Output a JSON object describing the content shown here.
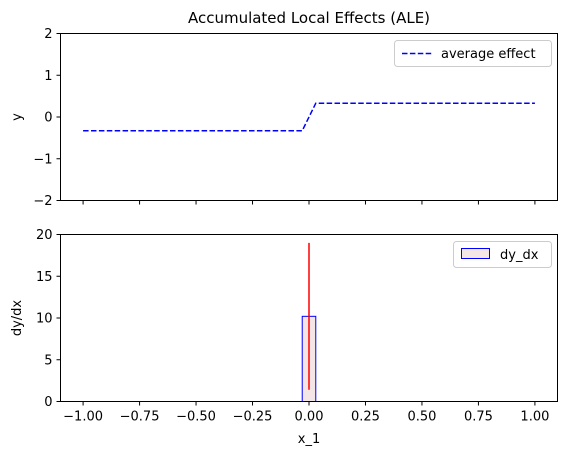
{
  "chart_data": [
    {
      "type": "line",
      "title": "Accumulated Local Effects (ALE)",
      "xlabel": "",
      "ylabel": "y",
      "xlim": [
        -1.1,
        1.1
      ],
      "ylim": [
        -2,
        2
      ],
      "xticks": [
        -1.0,
        -0.75,
        -0.5,
        -0.25,
        0.0,
        0.25,
        0.5,
        0.75,
        1.0
      ],
      "xticks_labeled": false,
      "yticks": [
        -2,
        -1,
        0,
        1,
        2
      ],
      "ytick_labels": [
        "−2",
        "−1",
        "0",
        "1",
        "2"
      ],
      "grid": false,
      "legend_position": "top-right",
      "series": [
        {
          "name": "average effect",
          "style": "dashed",
          "color": "#0000ff",
          "x": [
            -1.0,
            -0.9,
            -0.8,
            -0.7,
            -0.6,
            -0.5,
            -0.4,
            -0.3,
            -0.2,
            -0.1,
            -0.03,
            0.03,
            0.1,
            0.2,
            0.3,
            0.4,
            0.5,
            0.6,
            0.7,
            0.8,
            0.9,
            1.0
          ],
          "y": [
            -0.33,
            -0.33,
            -0.33,
            -0.33,
            -0.33,
            -0.33,
            -0.33,
            -0.33,
            -0.33,
            -0.33,
            -0.33,
            0.33,
            0.33,
            0.33,
            0.33,
            0.33,
            0.33,
            0.33,
            0.33,
            0.33,
            0.33,
            0.33
          ]
        }
      ]
    },
    {
      "type": "bar",
      "title": "",
      "xlabel": "x_1",
      "ylabel": "dy/dx",
      "xlim": [
        -1.1,
        1.1
      ],
      "ylim": [
        0,
        20
      ],
      "xticks": [
        -1.0,
        -0.75,
        -0.5,
        -0.25,
        0.0,
        0.25,
        0.5,
        0.75,
        1.0
      ],
      "xtick_labels": [
        "−1.00",
        "−0.75",
        "−0.50",
        "−0.25",
        "0.00",
        "0.25",
        "0.50",
        "0.75",
        "1.00"
      ],
      "yticks": [
        0,
        5,
        10,
        15,
        20
      ],
      "ytick_labels": [
        "0",
        "5",
        "10",
        "15",
        "20"
      ],
      "grid": false,
      "legend_position": "top-right",
      "bars": [
        {
          "x_left": -0.03,
          "x_right": 0.03,
          "value": 10.2
        }
      ],
      "bar_series_name": "dy_dx",
      "bar_fill": "#f4e6e6",
      "bar_edge": "#0000ff",
      "error_bars": [
        {
          "x": 0.0,
          "low": 1.4,
          "high": 19.0,
          "color": "#ff0000"
        }
      ]
    }
  ]
}
